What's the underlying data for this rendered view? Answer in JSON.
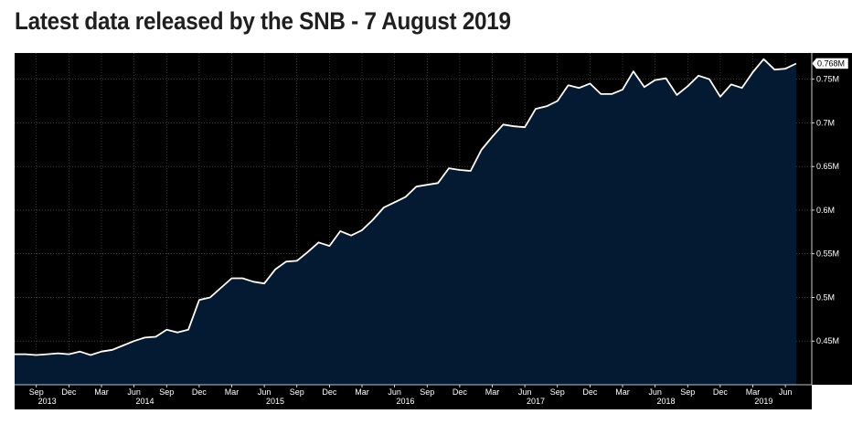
{
  "title": "Latest data released by the SNB - 7 August 2019",
  "chart_data": {
    "type": "area",
    "title": "Latest data released by the SNB - 7 August 2019",
    "xlabel": "",
    "ylabel": "",
    "ylim": [
      0.4,
      0.78
    ],
    "x_range": [
      "2013-07",
      "2019-07"
    ],
    "y_ticks": [
      {
        "value": 0.45,
        "label": "0.45M"
      },
      {
        "value": 0.5,
        "label": "0.5M"
      },
      {
        "value": 0.55,
        "label": "0.55M"
      },
      {
        "value": 0.6,
        "label": "0.6M"
      },
      {
        "value": 0.65,
        "label": "0.65M"
      },
      {
        "value": 0.7,
        "label": "0.7M"
      },
      {
        "value": 0.75,
        "label": "0.75M"
      }
    ],
    "last_value_label": "0.768M",
    "month_ticks": [
      {
        "date": "2013-09",
        "label": "Sep"
      },
      {
        "date": "2013-12",
        "label": "Dec"
      },
      {
        "date": "2014-03",
        "label": "Mar"
      },
      {
        "date": "2014-06",
        "label": "Jun"
      },
      {
        "date": "2014-09",
        "label": "Sep"
      },
      {
        "date": "2014-12",
        "label": "Dec"
      },
      {
        "date": "2015-03",
        "label": "Mar"
      },
      {
        "date": "2015-06",
        "label": "Jun"
      },
      {
        "date": "2015-09",
        "label": "Sep"
      },
      {
        "date": "2015-12",
        "label": "Dec"
      },
      {
        "date": "2016-03",
        "label": "Mar"
      },
      {
        "date": "2016-06",
        "label": "Jun"
      },
      {
        "date": "2016-09",
        "label": "Sep"
      },
      {
        "date": "2016-12",
        "label": "Dec"
      },
      {
        "date": "2017-03",
        "label": "Mar"
      },
      {
        "date": "2017-06",
        "label": "Jun"
      },
      {
        "date": "2017-09",
        "label": "Sep"
      },
      {
        "date": "2017-12",
        "label": "Dec"
      },
      {
        "date": "2018-03",
        "label": "Mar"
      },
      {
        "date": "2018-06",
        "label": "Jun"
      },
      {
        "date": "2018-09",
        "label": "Sep"
      },
      {
        "date": "2018-12",
        "label": "Dec"
      },
      {
        "date": "2019-03",
        "label": "Mar"
      },
      {
        "date": "2019-06",
        "label": "Jun"
      }
    ],
    "year_labels": [
      {
        "date": "2013-10",
        "label": "2013"
      },
      {
        "date": "2014-07",
        "label": "2014"
      },
      {
        "date": "2015-07",
        "label": "2015"
      },
      {
        "date": "2016-07",
        "label": "2016"
      },
      {
        "date": "2017-07",
        "label": "2017"
      },
      {
        "date": "2018-07",
        "label": "2018"
      },
      {
        "date": "2019-04",
        "label": "2019"
      }
    ],
    "series": [
      {
        "points": [
          [
            "2013-07",
            0.435
          ],
          [
            "2013-08",
            0.435
          ],
          [
            "2013-09",
            0.434
          ],
          [
            "2013-10",
            0.435
          ],
          [
            "2013-11",
            0.436
          ],
          [
            "2013-12",
            0.435
          ],
          [
            "2014-01",
            0.438
          ],
          [
            "2014-02",
            0.434
          ],
          [
            "2014-03",
            0.438
          ],
          [
            "2014-04",
            0.44
          ],
          [
            "2014-05",
            0.445
          ],
          [
            "2014-06",
            0.45
          ],
          [
            "2014-07",
            0.454
          ],
          [
            "2014-08",
            0.455
          ],
          [
            "2014-09",
            0.463
          ],
          [
            "2014-10",
            0.46
          ],
          [
            "2014-11",
            0.463
          ],
          [
            "2014-12",
            0.497
          ],
          [
            "2015-01",
            0.5
          ],
          [
            "2015-02",
            0.511
          ],
          [
            "2015-03",
            0.522
          ],
          [
            "2015-04",
            0.522
          ],
          [
            "2015-05",
            0.518
          ],
          [
            "2015-06",
            0.516
          ],
          [
            "2015-07",
            0.532
          ],
          [
            "2015-08",
            0.541
          ],
          [
            "2015-09",
            0.542
          ],
          [
            "2015-10",
            0.552
          ],
          [
            "2015-11",
            0.563
          ],
          [
            "2015-12",
            0.559
          ],
          [
            "2016-01",
            0.576
          ],
          [
            "2016-02",
            0.571
          ],
          [
            "2016-03",
            0.577
          ],
          [
            "2016-04",
            0.589
          ],
          [
            "2016-05",
            0.603
          ],
          [
            "2016-06",
            0.609
          ],
          [
            "2016-07",
            0.615
          ],
          [
            "2016-08",
            0.627
          ],
          [
            "2016-09",
            0.629
          ],
          [
            "2016-10",
            0.631
          ],
          [
            "2016-11",
            0.648
          ],
          [
            "2016-12",
            0.646
          ],
          [
            "2017-01",
            0.645
          ],
          [
            "2017-02",
            0.669
          ],
          [
            "2017-03",
            0.684
          ],
          [
            "2017-04",
            0.698
          ],
          [
            "2017-05",
            0.696
          ],
          [
            "2017-06",
            0.695
          ],
          [
            "2017-07",
            0.716
          ],
          [
            "2017-08",
            0.719
          ],
          [
            "2017-09",
            0.725
          ],
          [
            "2017-10",
            0.743
          ],
          [
            "2017-11",
            0.74
          ],
          [
            "2017-12",
            0.745
          ],
          [
            "2018-01",
            0.733
          ],
          [
            "2018-02",
            0.733
          ],
          [
            "2018-03",
            0.738
          ],
          [
            "2018-04",
            0.759
          ],
          [
            "2018-05",
            0.741
          ],
          [
            "2018-06",
            0.749
          ],
          [
            "2018-07",
            0.751
          ],
          [
            "2018-08",
            0.732
          ],
          [
            "2018-09",
            0.742
          ],
          [
            "2018-10",
            0.754
          ],
          [
            "2018-11",
            0.75
          ],
          [
            "2018-12",
            0.73
          ],
          [
            "2019-01",
            0.744
          ],
          [
            "2019-02",
            0.74
          ],
          [
            "2019-03",
            0.758
          ],
          [
            "2019-04",
            0.773
          ],
          [
            "2019-05",
            0.761
          ],
          [
            "2019-06",
            0.762
          ],
          [
            "2019-07",
            0.768
          ]
        ]
      }
    ]
  },
  "colors": {
    "plot_background": "#000000",
    "area_fill": "#041a33",
    "line": "#ffffff",
    "grid": "#5a5a5a",
    "axis_text": "#ffffff"
  }
}
